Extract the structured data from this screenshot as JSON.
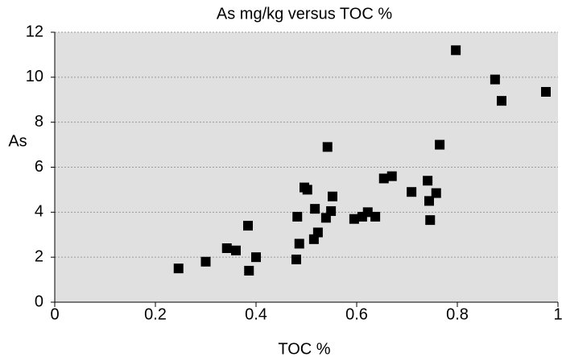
{
  "chart_data": {
    "type": "scatter",
    "title": "As mg/kg versus TOC %",
    "x_label": "TOC %",
    "y_label": "As",
    "x": [
      0.246,
      0.3,
      0.342,
      0.36,
      0.384,
      0.386,
      0.4,
      0.48,
      0.482,
      0.486,
      0.496,
      0.502,
      0.515,
      0.517,
      0.523,
      0.539,
      0.542,
      0.549,
      0.552,
      0.595,
      0.611,
      0.622,
      0.637,
      0.654,
      0.67,
      0.709,
      0.741,
      0.744,
      0.746,
      0.758,
      0.765,
      0.797,
      0.875,
      0.888,
      0.976
    ],
    "values": [
      1.5,
      1.8,
      2.4,
      2.3,
      3.4,
      1.4,
      2.0,
      1.9,
      3.8,
      2.6,
      5.1,
      5.0,
      2.8,
      4.15,
      3.1,
      3.75,
      6.9,
      4.05,
      4.7,
      3.7,
      3.8,
      4.0,
      3.8,
      5.5,
      5.6,
      4.9,
      5.4,
      4.5,
      3.65,
      4.85,
      7.0,
      11.2,
      9.9,
      8.95,
      9.35
    ],
    "color": "#000000",
    "xlim": [
      0,
      1
    ],
    "xticks": [
      0,
      0.2,
      0.4,
      0.6,
      0.8,
      1
    ],
    "ylim": [
      0,
      12
    ],
    "yticks": [
      0,
      2,
      4,
      6,
      8,
      10,
      12
    ],
    "grid": true
  }
}
